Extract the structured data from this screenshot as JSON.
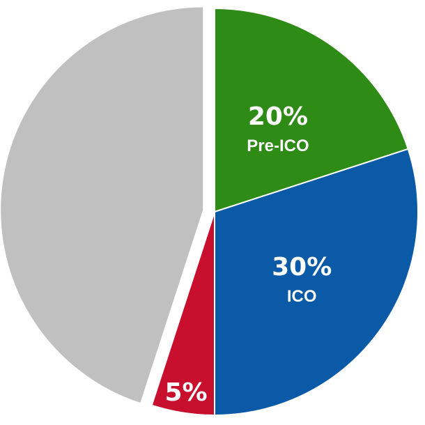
{
  "chart_data": {
    "type": "pie",
    "slices": [
      {
        "label": "Pre-ICO",
        "value": 20,
        "value_label": "20%",
        "color": "#2e8b16"
      },
      {
        "label": "ICO",
        "value": 30,
        "value_label": "30%",
        "color": "#0b5aa8"
      },
      {
        "label": "",
        "value": 5,
        "value_label": "5%",
        "color": "#c8102e"
      },
      {
        "label": "",
        "value": 45,
        "value_label": "",
        "color": "#c0c0c0",
        "exploded": true
      }
    ],
    "start_angle": "12 o'clock",
    "direction": "clockwise"
  }
}
